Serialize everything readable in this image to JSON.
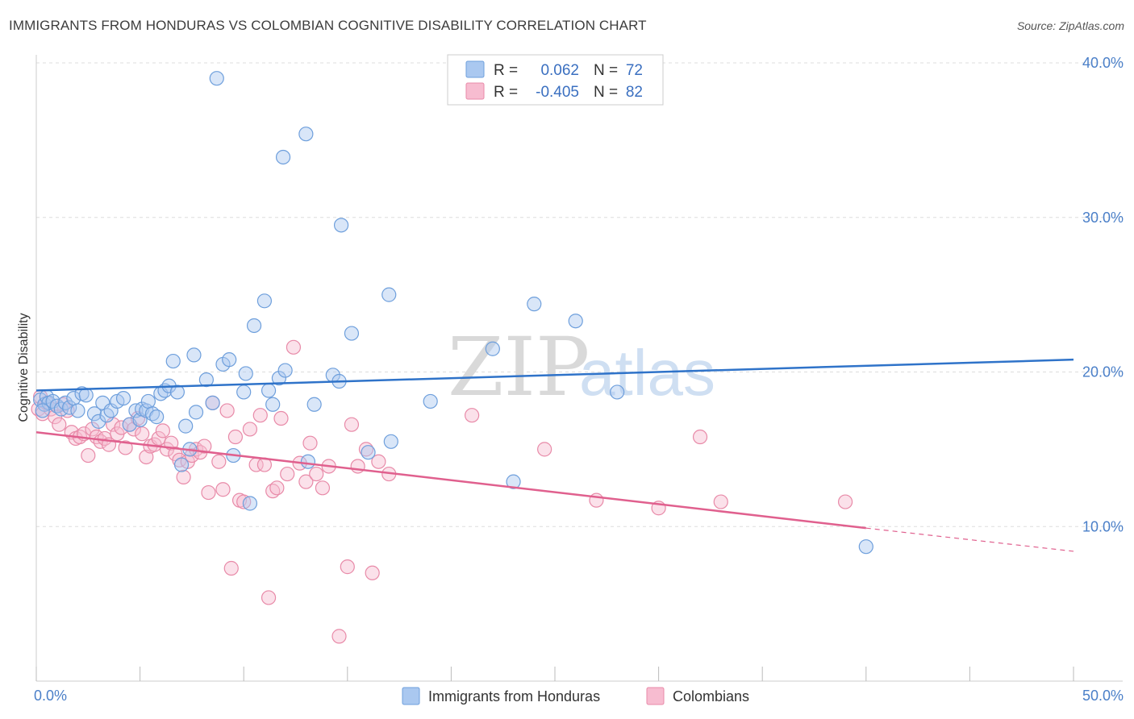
{
  "title": "IMMIGRANTS FROM HONDURAS VS COLOMBIAN COGNITIVE DISABILITY CORRELATION CHART",
  "source": "Source: ZipAtlas.com",
  "watermark": {
    "part1": "ZIP",
    "part2": "atlas"
  },
  "legend": {
    "row1": {
      "r_label": "R =",
      "r_value": "0.062",
      "n_label": "N =",
      "n_value": "72"
    },
    "row2": {
      "r_label": "R =",
      "r_value": "-0.405",
      "n_label": "N =",
      "n_value": "82"
    }
  },
  "bottom_legend": {
    "series1": "Immigrants from Honduras",
    "series2": "Colombians"
  },
  "colors": {
    "blue_fill": "#aac8f0",
    "blue_stroke": "#6e9fdc",
    "blue_line": "#2f73c9",
    "pink_fill": "#f7bcd0",
    "pink_stroke": "#e88aa8",
    "pink_line": "#e0608e",
    "grid": "#dddddd",
    "axis_text": "#4a7fc8"
  },
  "chart_data": {
    "type": "scatter",
    "ylabel": "Cognitive Disability",
    "xlim": [
      0,
      50
    ],
    "ylim": [
      0,
      40
    ],
    "x_tick_labels": [
      "0.0%",
      "50.0%"
    ],
    "y_ticks": [
      {
        "value": 10,
        "label": "10.0%"
      },
      {
        "value": 20,
        "label": "20.0%"
      },
      {
        "value": 30,
        "label": "30.0%"
      },
      {
        "value": 40,
        "label": "40.0%"
      }
    ],
    "series": [
      {
        "name": "Immigrants from Honduras",
        "color": "blue",
        "trend": {
          "x": [
            0,
            50
          ],
          "y": [
            18.8,
            20.8
          ],
          "dash_from": null
        },
        "points": [
          [
            0.2,
            18.2
          ],
          [
            0.4,
            17.9
          ],
          [
            0.5,
            18.4
          ],
          [
            0.6,
            18.0
          ],
          [
            0.8,
            18.1
          ],
          [
            1.0,
            17.8
          ],
          [
            1.2,
            17.6
          ],
          [
            1.4,
            18.0
          ],
          [
            1.6,
            17.7
          ],
          [
            1.8,
            18.3
          ],
          [
            2.0,
            17.5
          ],
          [
            2.2,
            18.6
          ],
          [
            2.4,
            18.5
          ],
          [
            2.8,
            17.3
          ],
          [
            3.0,
            16.8
          ],
          [
            3.2,
            18.0
          ],
          [
            3.4,
            17.2
          ],
          [
            3.6,
            17.5
          ],
          [
            3.9,
            18.1
          ],
          [
            4.2,
            18.3
          ],
          [
            4.5,
            16.6
          ],
          [
            4.8,
            17.5
          ],
          [
            5.0,
            16.9
          ],
          [
            5.1,
            17.6
          ],
          [
            5.3,
            17.5
          ],
          [
            5.4,
            18.1
          ],
          [
            5.6,
            17.3
          ],
          [
            5.8,
            17.1
          ],
          [
            6.0,
            18.6
          ],
          [
            6.2,
            18.8
          ],
          [
            6.4,
            19.1
          ],
          [
            6.6,
            20.7
          ],
          [
            6.8,
            18.7
          ],
          [
            7.0,
            14.0
          ],
          [
            7.2,
            16.5
          ],
          [
            7.4,
            15.0
          ],
          [
            7.6,
            21.1
          ],
          [
            7.7,
            17.4
          ],
          [
            8.2,
            19.5
          ],
          [
            8.5,
            18.0
          ],
          [
            8.7,
            39.0
          ],
          [
            9.0,
            20.5
          ],
          [
            9.3,
            20.8
          ],
          [
            9.5,
            14.6
          ],
          [
            10.0,
            18.7
          ],
          [
            10.1,
            19.9
          ],
          [
            10.3,
            11.5
          ],
          [
            10.5,
            23.0
          ],
          [
            11.0,
            24.6
          ],
          [
            11.2,
            18.8
          ],
          [
            11.4,
            17.9
          ],
          [
            11.7,
            19.6
          ],
          [
            12.0,
            20.1
          ],
          [
            11.9,
            33.9
          ],
          [
            13.0,
            35.4
          ],
          [
            13.1,
            14.2
          ],
          [
            13.4,
            17.9
          ],
          [
            14.3,
            19.8
          ],
          [
            14.6,
            19.4
          ],
          [
            14.7,
            29.5
          ],
          [
            15.2,
            22.5
          ],
          [
            16.0,
            14.8
          ],
          [
            17.0,
            25.0
          ],
          [
            17.1,
            15.5
          ],
          [
            19.0,
            18.1
          ],
          [
            22.0,
            21.5
          ],
          [
            23.0,
            12.9
          ],
          [
            24.0,
            24.4
          ],
          [
            26.0,
            23.3
          ],
          [
            28.0,
            18.7
          ],
          [
            40.0,
            8.7
          ],
          [
            0.3,
            17.5
          ]
        ]
      },
      {
        "name": "Colombians",
        "color": "pink",
        "trend": {
          "x": [
            0,
            40,
            50
          ],
          "y": [
            16.1,
            9.9,
            8.4
          ],
          "dash_from": 40
        },
        "points": [
          [
            0.1,
            17.6
          ],
          [
            0.3,
            17.3
          ],
          [
            0.5,
            18.0
          ],
          [
            0.7,
            17.6
          ],
          [
            0.9,
            17.1
          ],
          [
            1.1,
            16.6
          ],
          [
            1.3,
            17.9
          ],
          [
            1.5,
            17.5
          ],
          [
            1.7,
            16.1
          ],
          [
            1.9,
            15.7
          ],
          [
            2.1,
            15.8
          ],
          [
            2.3,
            16.0
          ],
          [
            2.5,
            14.6
          ],
          [
            2.7,
            16.3
          ],
          [
            2.9,
            15.8
          ],
          [
            3.1,
            15.5
          ],
          [
            3.3,
            15.7
          ],
          [
            3.5,
            15.3
          ],
          [
            3.7,
            16.6
          ],
          [
            3.9,
            16.0
          ],
          [
            4.1,
            16.4
          ],
          [
            4.3,
            15.1
          ],
          [
            4.5,
            16.6
          ],
          [
            4.7,
            16.3
          ],
          [
            4.9,
            17.0
          ],
          [
            5.1,
            16.0
          ],
          [
            5.3,
            14.5
          ],
          [
            5.5,
            15.2
          ],
          [
            5.7,
            15.3
          ],
          [
            5.9,
            15.7
          ],
          [
            6.1,
            16.2
          ],
          [
            6.3,
            15.0
          ],
          [
            6.5,
            15.4
          ],
          [
            6.7,
            14.7
          ],
          [
            6.9,
            14.3
          ],
          [
            7.1,
            13.2
          ],
          [
            7.3,
            14.2
          ],
          [
            7.5,
            14.6
          ],
          [
            7.7,
            15.0
          ],
          [
            7.9,
            14.8
          ],
          [
            8.1,
            15.2
          ],
          [
            8.3,
            12.2
          ],
          [
            8.5,
            18.0
          ],
          [
            8.8,
            14.2
          ],
          [
            9.0,
            12.4
          ],
          [
            9.2,
            17.5
          ],
          [
            9.4,
            7.3
          ],
          [
            9.6,
            15.8
          ],
          [
            9.8,
            11.7
          ],
          [
            10.0,
            11.6
          ],
          [
            10.3,
            16.3
          ],
          [
            10.6,
            14.0
          ],
          [
            10.8,
            17.2
          ],
          [
            11.0,
            14.0
          ],
          [
            11.2,
            5.4
          ],
          [
            11.4,
            12.3
          ],
          [
            11.6,
            12.5
          ],
          [
            11.8,
            17.0
          ],
          [
            12.1,
            13.4
          ],
          [
            12.4,
            21.6
          ],
          [
            12.7,
            14.1
          ],
          [
            13.0,
            12.9
          ],
          [
            13.2,
            15.4
          ],
          [
            13.5,
            13.4
          ],
          [
            13.8,
            12.5
          ],
          [
            14.1,
            13.9
          ],
          [
            14.6,
            2.9
          ],
          [
            15.0,
            7.4
          ],
          [
            15.2,
            16.6
          ],
          [
            15.5,
            13.9
          ],
          [
            15.9,
            15.0
          ],
          [
            16.2,
            7.0
          ],
          [
            16.5,
            14.2
          ],
          [
            17.0,
            13.4
          ],
          [
            21.0,
            17.2
          ],
          [
            24.5,
            15.0
          ],
          [
            27.0,
            11.7
          ],
          [
            30.0,
            11.2
          ],
          [
            32.0,
            15.8
          ],
          [
            33.0,
            11.6
          ],
          [
            39.0,
            11.6
          ],
          [
            0.2,
            18.4
          ]
        ]
      }
    ]
  }
}
